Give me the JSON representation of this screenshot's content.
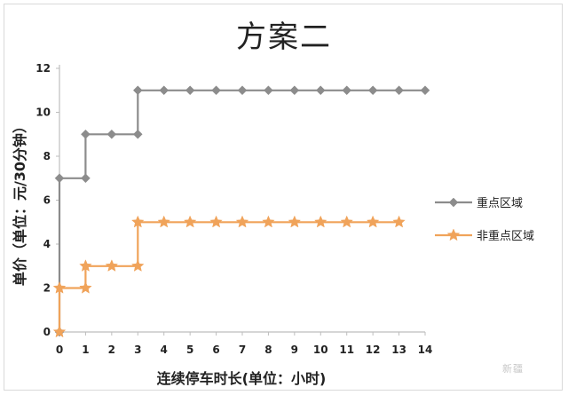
{
  "chart_data": {
    "type": "line",
    "title": "方案二",
    "xlabel": "连续停车时长(单位：小时)",
    "ylabel": "单价（单位：元/30分钟）",
    "x_ticks": [
      "0",
      "1",
      "2",
      "3",
      "4",
      "5",
      "6",
      "7",
      "8",
      "9",
      "10",
      "11",
      "12",
      "13",
      "14"
    ],
    "y_ticks": [
      "0",
      "2",
      "4",
      "6",
      "8",
      "10",
      "12"
    ],
    "xlim": [
      0,
      14
    ],
    "ylim": [
      0,
      12
    ],
    "step_lines": true,
    "legend_position": "right",
    "series": [
      {
        "name": "重点区域",
        "color": "#8c8c8c",
        "marker": "diamond",
        "points": [
          [
            0,
            0
          ],
          [
            0,
            7
          ],
          [
            1,
            7
          ],
          [
            1,
            9
          ],
          [
            2,
            9
          ],
          [
            3,
            9
          ],
          [
            3,
            11
          ],
          [
            4,
            11
          ],
          [
            5,
            11
          ],
          [
            6,
            11
          ],
          [
            7,
            11
          ],
          [
            8,
            11
          ],
          [
            9,
            11
          ],
          [
            10,
            11
          ],
          [
            11,
            11
          ],
          [
            12,
            11
          ],
          [
            13,
            11
          ],
          [
            14,
            11
          ]
        ]
      },
      {
        "name": "非重点区域",
        "color": "#f0a35a",
        "marker": "star",
        "points": [
          [
            0,
            0
          ],
          [
            0,
            2
          ],
          [
            1,
            2
          ],
          [
            1,
            3
          ],
          [
            2,
            3
          ],
          [
            3,
            3
          ],
          [
            3,
            5
          ],
          [
            4,
            5
          ],
          [
            5,
            5
          ],
          [
            6,
            5
          ],
          [
            7,
            5
          ],
          [
            8,
            5
          ],
          [
            9,
            5
          ],
          [
            10,
            5
          ],
          [
            11,
            5
          ],
          [
            12,
            5
          ],
          [
            13,
            5
          ]
        ]
      }
    ]
  },
  "watermark": "新疆"
}
